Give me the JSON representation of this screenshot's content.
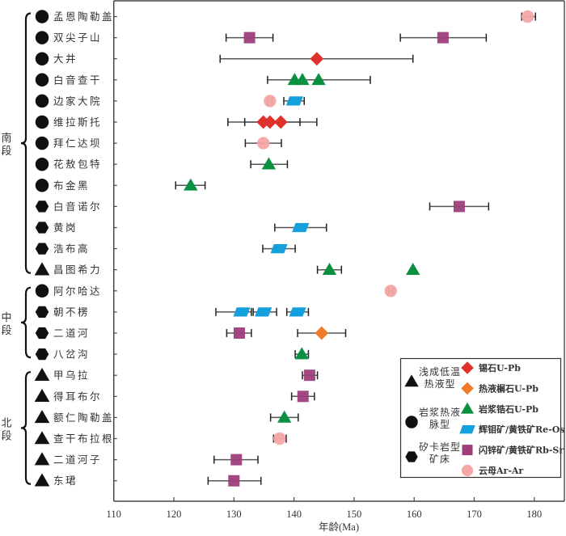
{
  "chart_data": {
    "type": "scatter",
    "subtype": "dot-plot with horizontal error bars",
    "title": "",
    "xlabel": "年龄(Ma)",
    "ylabel": "",
    "xlim": [
      110,
      185
    ],
    "xticks": [
      110,
      120,
      130,
      140,
      150,
      160,
      170,
      180
    ],
    "grid": false,
    "legend_position": "bottom-right",
    "groups": [
      {
        "name": "南段",
        "rows": [
          0,
          12
        ]
      },
      {
        "name": "中段",
        "rows": [
          13,
          16
        ]
      },
      {
        "name": "北段",
        "rows": [
          17,
          22
        ]
      }
    ],
    "deposit_types": {
      "triangle": "浅成低温热液型",
      "circle": "岩浆热液脉型",
      "hexagon": "矽卡岩型矿床"
    },
    "methods": {
      "cassiterite": {
        "label": "锡石U-Pb",
        "marker": "diamond",
        "color": "#E0312D"
      },
      "titanite": {
        "label": "热液榍石U-Pb",
        "marker": "diamond",
        "color": "#EF7C2B"
      },
      "zircon": {
        "label": "岩浆锆石U-Pb",
        "marker": "triangle",
        "color": "#0A9140"
      },
      "molybdenite": {
        "label": "辉钼矿/黄铁矿Re-Os",
        "marker": "parallelogram",
        "color": "#14A0DC"
      },
      "sphalerite": {
        "label": "闪锌矿/黄铁矿Rb-Sr",
        "marker": "square",
        "color": "#9E3F7B"
      },
      "mica": {
        "label": "云母Ar-Ar",
        "marker": "circle",
        "color": "#F4A7A5"
      }
    },
    "rows": [
      {
        "name": "孟恩陶勒盖",
        "type": "circle",
        "errorbars": [
          [
            177.9,
            180.2
          ]
        ],
        "points": [
          {
            "method": "mica",
            "age": 178.9
          }
        ]
      },
      {
        "name": "双尖子山",
        "type": "circle",
        "errorbars": [
          [
            128.7,
            136.5
          ],
          [
            157.7,
            172.0
          ]
        ],
        "points": [
          {
            "method": "sphalerite",
            "age": 132.6
          },
          {
            "method": "sphalerite",
            "age": 164.8
          }
        ]
      },
      {
        "name": "大井",
        "type": "circle",
        "errorbars": [
          [
            127.7,
            159.8
          ]
        ],
        "points": [
          {
            "method": "cassiterite",
            "age": 143.8
          }
        ]
      },
      {
        "name": "白音查干",
        "type": "circle",
        "errorbars": [
          [
            135.6,
            152.7
          ]
        ],
        "points": [
          {
            "method": "zircon",
            "age": 140.1
          },
          {
            "method": "zircon",
            "age": 141.4
          },
          {
            "method": "zircon",
            "age": 144.1
          }
        ]
      },
      {
        "name": "边家大院",
        "type": "circle",
        "errorbars": [
          [
            135.6,
            136.4
          ],
          [
            138.3,
            141.7
          ]
        ],
        "points": [
          {
            "method": "mica",
            "age": 136.0
          },
          {
            "method": "molybdenite",
            "age": 140.1
          }
        ]
      },
      {
        "name": "维拉斯托",
        "type": "circle",
        "errorbars": [
          [
            129.0,
            143.8
          ],
          [
            131.8,
            141.0
          ]
        ],
        "points": [
          {
            "method": "cassiterite",
            "age": 134.9
          },
          {
            "method": "cassiterite",
            "age": 136.0
          },
          {
            "method": "cassiterite",
            "age": 137.8
          }
        ]
      },
      {
        "name": "拜仁达坝",
        "type": "circle",
        "errorbars": [
          [
            131.9,
            137.9
          ]
        ],
        "points": [
          {
            "method": "mica",
            "age": 134.9
          }
        ]
      },
      {
        "name": "花敖包特",
        "type": "circle",
        "errorbars": [
          [
            132.8,
            138.9
          ]
        ],
        "points": [
          {
            "method": "zircon",
            "age": 135.8
          }
        ]
      },
      {
        "name": "布金黑",
        "type": "circle",
        "errorbars": [
          [
            120.3,
            125.2
          ]
        ],
        "points": [
          {
            "method": "zircon",
            "age": 122.8
          }
        ]
      },
      {
        "name": "白音诺尔",
        "type": "hexagon",
        "errorbars": [
          [
            162.6,
            172.4
          ]
        ],
        "points": [
          {
            "method": "sphalerite",
            "age": 167.5
          }
        ]
      },
      {
        "name": "黄岗",
        "type": "hexagon",
        "errorbars": [
          [
            136.8,
            145.4
          ]
        ],
        "points": [
          {
            "method": "molybdenite",
            "age": 141.1
          }
        ]
      },
      {
        "name": "浩布高",
        "type": "hexagon",
        "errorbars": [
          [
            134.8,
            140.2
          ]
        ],
        "points": [
          {
            "method": "molybdenite",
            "age": 137.5
          }
        ]
      },
      {
        "name": "昌图希力",
        "type": "triangle",
        "errorbars": [
          [
            143.9,
            147.9
          ]
        ],
        "points": [
          {
            "method": "zircon",
            "age": 145.9
          },
          {
            "method": "zircon",
            "age": 159.8
          }
        ]
      },
      {
        "name": "阿尔哈达",
        "type": "circle",
        "errorbars": [
          [
            155.7,
            156.5
          ]
        ],
        "points": [
          {
            "method": "mica",
            "age": 156.1
          }
        ]
      },
      {
        "name": "朝不楞",
        "type": "hexagon",
        "errorbars": [
          [
            127.0,
            132.9
          ],
          [
            133.2,
            137.1
          ],
          [
            138.8,
            142.4
          ]
        ],
        "points": [
          {
            "method": "molybdenite",
            "age": 131.3
          },
          {
            "method": "molybdenite",
            "age": 134.9
          },
          {
            "method": "molybdenite",
            "age": 140.6
          }
        ]
      },
      {
        "name": "二道河",
        "type": "hexagon",
        "errorbars": [
          [
            128.8,
            132.9
          ],
          [
            140.6,
            148.6
          ]
        ],
        "points": [
          {
            "method": "sphalerite",
            "age": 130.9
          },
          {
            "method": "titanite",
            "age": 144.6
          }
        ]
      },
      {
        "name": "八岔沟",
        "type": "hexagon",
        "errorbars": [
          [
            140.2,
            142.4
          ]
        ],
        "points": [
          {
            "method": "zircon",
            "age": 141.3
          }
        ]
      },
      {
        "name": "甲乌拉",
        "type": "triangle",
        "errorbars": [
          [
            141.4,
            143.9
          ]
        ],
        "points": [
          {
            "method": "sphalerite",
            "age": 142.6
          }
        ]
      },
      {
        "name": "得耳布尔",
        "type": "triangle",
        "errorbars": [
          [
            139.6,
            143.4
          ]
        ],
        "points": [
          {
            "method": "sphalerite",
            "age": 141.5
          }
        ]
      },
      {
        "name": "额仁陶勒盖",
        "type": "triangle",
        "errorbars": [
          [
            136.1,
            140.7
          ]
        ],
        "points": [
          {
            "method": "zircon",
            "age": 138.4
          }
        ]
      },
      {
        "name": "查干布拉根",
        "type": "triangle",
        "errorbars": [
          [
            136.6,
            138.7
          ]
        ],
        "points": [
          {
            "method": "mica",
            "age": 137.6
          }
        ]
      },
      {
        "name": "二道河子",
        "type": "triangle",
        "errorbars": [
          [
            126.7,
            134.0
          ]
        ],
        "points": [
          {
            "method": "sphalerite",
            "age": 130.4
          }
        ]
      },
      {
        "name": "东珺",
        "type": "triangle",
        "errorbars": [
          [
            125.7,
            134.5
          ]
        ],
        "points": [
          {
            "method": "sphalerite",
            "age": 130.0
          }
        ]
      }
    ],
    "legend": {
      "types": [
        {
          "marker": "triangle",
          "lines": [
            "浅成低温",
            "热液型"
          ]
        },
        {
          "marker": "circle",
          "lines": [
            "岩浆热液",
            "脉型"
          ]
        },
        {
          "marker": "hexagon",
          "lines": [
            "矽卡岩型",
            "矿床"
          ]
        }
      ],
      "methods": [
        "cassiterite",
        "titanite",
        "zircon",
        "molybdenite",
        "sphalerite",
        "mica"
      ]
    }
  }
}
